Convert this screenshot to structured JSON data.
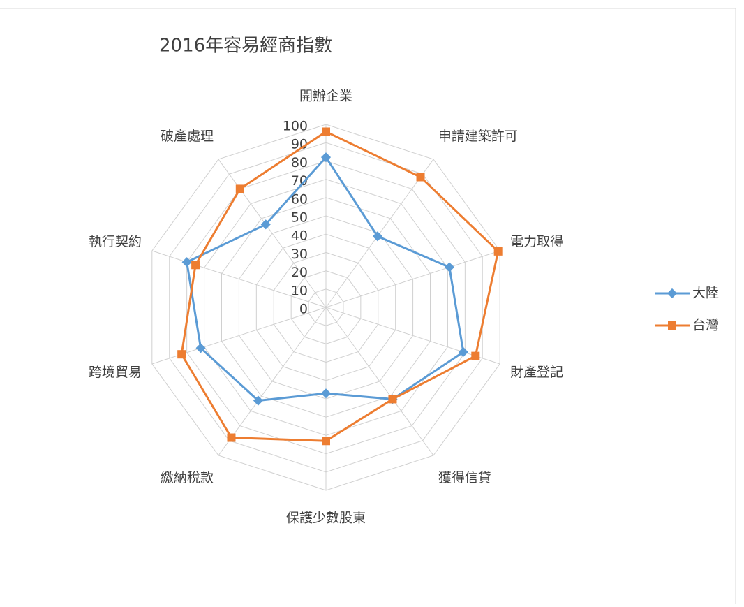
{
  "chart_data": {
    "type": "radar",
    "title": "2016年容易經商指數",
    "categories": [
      "開辦企業",
      "申請建築許可",
      "電力取得",
      "財產登記",
      "獲得信貸",
      "保護少數股東",
      "繳納稅款",
      "跨境貿易",
      "執行契約",
      "破產處理"
    ],
    "series": [
      {
        "name": "大陸",
        "color": "#5b9bd5",
        "values": [
          82,
          48,
          71,
          79,
          62,
          47,
          63,
          72,
          80,
          56
        ]
      },
      {
        "name": "台灣",
        "color": "#ed7d31",
        "values": [
          96,
          88,
          99,
          86,
          62,
          73,
          88,
          83,
          75,
          80
        ]
      }
    ],
    "rlim": [
      0,
      100
    ],
    "rticks": [
      0,
      10,
      20,
      30,
      40,
      50,
      60,
      70,
      80,
      90,
      100
    ],
    "grid": true,
    "legend": "right"
  }
}
